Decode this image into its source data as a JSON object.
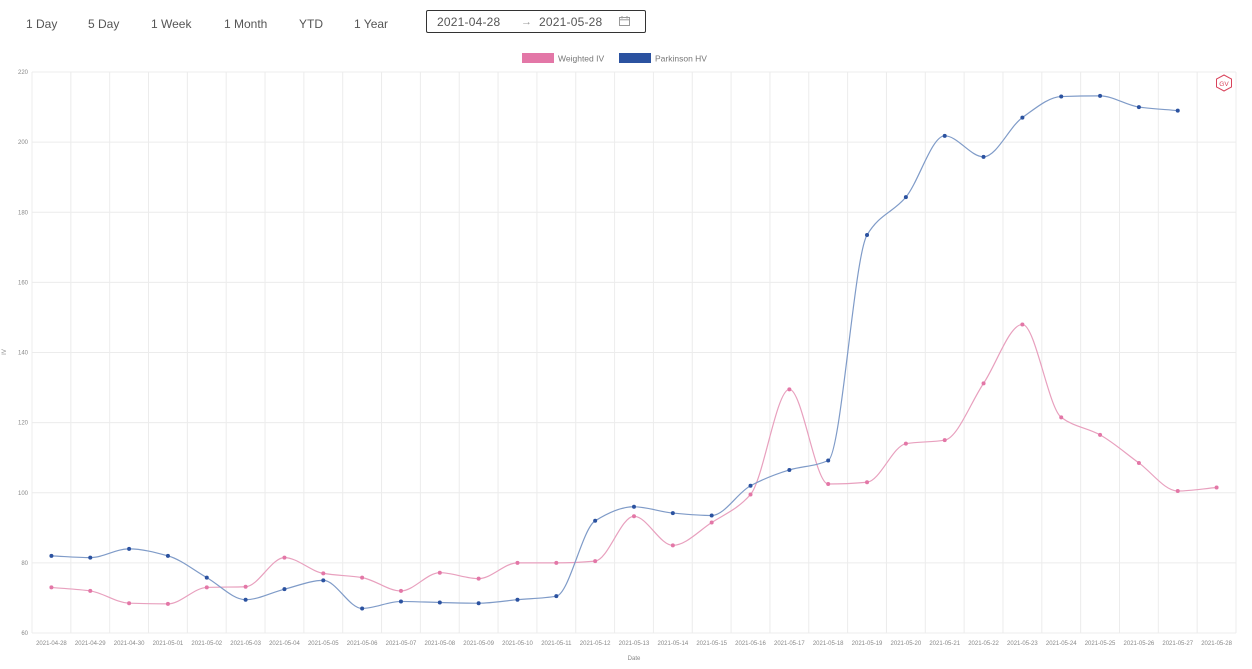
{
  "toolbar": {
    "ranges": [
      "1 Day",
      "5 Day",
      "1 Week",
      "1 Month",
      "YTD",
      "1 Year"
    ],
    "date_start": "2021-04-28",
    "date_separator": "→",
    "date_end": "2021-05-28",
    "calendar_icon": "calendar-icon"
  },
  "watermark": {
    "text": "GV",
    "icon": "gv-badge-icon",
    "color": "#d9435b"
  },
  "chart_data": {
    "type": "line",
    "title": "",
    "xlabel": "Date",
    "ylabel": "IV",
    "ylim": [
      60,
      220
    ],
    "yticks": [
      60,
      80,
      100,
      120,
      140,
      160,
      180,
      200,
      220
    ],
    "grid": true,
    "legend_position": "top-center",
    "smooth": true,
    "x": [
      "2021-04-28",
      "2021-04-29",
      "2021-04-30",
      "2021-05-01",
      "2021-05-02",
      "2021-05-03",
      "2021-05-04",
      "2021-05-05",
      "2021-05-06",
      "2021-05-07",
      "2021-05-08",
      "2021-05-09",
      "2021-05-10",
      "2021-05-11",
      "2021-05-12",
      "2021-05-13",
      "2021-05-14",
      "2021-05-15",
      "2021-05-16",
      "2021-05-17",
      "2021-05-18",
      "2021-05-19",
      "2021-05-20",
      "2021-05-21",
      "2021-05-22",
      "2021-05-23",
      "2021-05-24",
      "2021-05-25",
      "2021-05-26",
      "2021-05-27",
      "2021-05-28"
    ],
    "series": [
      {
        "name": "Weighted IV",
        "color": "#e377a7",
        "line_color": "#e8a0be",
        "values": [
          73,
          72,
          68.5,
          68.3,
          73,
          73.2,
          81.5,
          77,
          75.8,
          72,
          77.2,
          75.5,
          80,
          80,
          80.5,
          93.3,
          85,
          91.5,
          99.5,
          129.5,
          102.5,
          103,
          114,
          115,
          131.2,
          148,
          121.5,
          116.5,
          108.5,
          100.5,
          101.5
        ]
      },
      {
        "name": "Parkinson HV",
        "color": "#2b52a0",
        "line_color": "#7f9bc8",
        "values": [
          82,
          81.5,
          84,
          82,
          75.8,
          69.5,
          72.5,
          75,
          67,
          69,
          68.7,
          68.5,
          69.5,
          70.5,
          92,
          96,
          94.2,
          93.5,
          102,
          106.5,
          109.2,
          173.5,
          184.3,
          201.8,
          195.8,
          207,
          213,
          213.2,
          210,
          209,
          null
        ]
      }
    ]
  }
}
